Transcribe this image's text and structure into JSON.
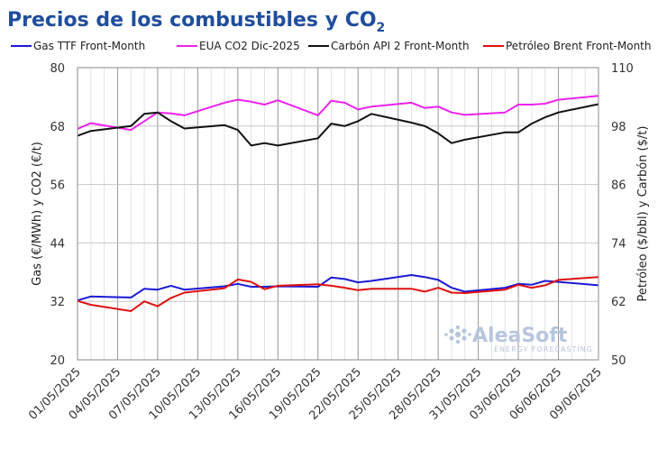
{
  "title_main": "Precios de los combustibles y CO",
  "title_sub": "2",
  "watermark": {
    "brand": "AleaSoft",
    "tagline": "ENERGY FORECASTING"
  },
  "colors": {
    "gas": "#1a1ad6",
    "co2": "#ee22ee",
    "coal": "#111111",
    "brent": "#e01010",
    "title": "#1f4e9c",
    "grid": "#c8c8c8"
  },
  "chart_data": {
    "type": "line",
    "x": [
      "01/05/2025",
      "02/05/2025",
      "05/05/2025",
      "06/05/2025",
      "07/05/2025",
      "08/05/2025",
      "09/05/2025",
      "12/05/2025",
      "13/05/2025",
      "14/05/2025",
      "15/05/2025",
      "16/05/2025",
      "19/05/2025",
      "20/05/2025",
      "21/05/2025",
      "22/05/2025",
      "23/05/2025",
      "26/05/2025",
      "27/05/2025",
      "28/05/2025",
      "29/05/2025",
      "30/05/2025",
      "02/06/2025",
      "03/06/2025",
      "04/06/2025",
      "05/06/2025",
      "06/06/2025",
      "09/06/2025"
    ],
    "x_tick_labels": [
      "01/05/2025",
      "04/05/2025",
      "07/05/2025",
      "10/05/2025",
      "13/05/2025",
      "16/05/2025",
      "19/05/2025",
      "22/05/2025",
      "25/05/2025",
      "28/05/2025",
      "31/05/2025",
      "03/06/2025",
      "06/06/2025",
      "09/06/2025"
    ],
    "x_range": [
      "01/05/2025",
      "09/06/2025"
    ],
    "left_axis": {
      "label": "Gas (€/MWh) y CO2 (€/t)",
      "ylim": [
        20,
        80
      ],
      "ticks": [
        20,
        32,
        44,
        56,
        68,
        80
      ]
    },
    "right_axis": {
      "label": "Petróleo ($/bbl) y Carbón ($/t)",
      "ylim": [
        50,
        110
      ],
      "ticks": [
        50,
        62,
        74,
        86,
        98,
        110
      ]
    },
    "series": [
      {
        "name": "Gas TTF Front-Month",
        "axis": "left",
        "color": "#1a1ad6",
        "values": [
          32.2,
          33.0,
          32.8,
          34.6,
          34.4,
          35.2,
          34.4,
          35.1,
          35.6,
          35.0,
          35.0,
          35.1,
          35.0,
          36.9,
          36.6,
          35.9,
          36.2,
          37.4,
          37.0,
          36.4,
          34.8,
          34.0,
          34.8,
          35.6,
          35.4,
          36.2,
          36.0,
          35.3
        ]
      },
      {
        "name": "EUA CO2 Dic-2025",
        "axis": "left",
        "color": "#ee22ee",
        "values": [
          67.4,
          68.6,
          67.2,
          69.0,
          70.8,
          70.6,
          70.2,
          72.8,
          73.4,
          73.0,
          72.4,
          73.3,
          70.2,
          73.2,
          72.8,
          71.4,
          72.0,
          72.8,
          71.7,
          72.0,
          70.8,
          70.3,
          70.8,
          72.4,
          72.4,
          72.6,
          73.4,
          74.2
        ]
      },
      {
        "name": "Carbón API 2 Front-Month",
        "axis": "right",
        "color": "#111111",
        "values": [
          96.0,
          97.0,
          98.0,
          100.5,
          100.8,
          99.0,
          97.5,
          98.2,
          97.2,
          94.0,
          94.5,
          94.0,
          95.5,
          98.5,
          98.0,
          99.0,
          100.5,
          98.7,
          98.0,
          96.5,
          94.5,
          95.2,
          96.7,
          96.7,
          98.5,
          99.8,
          100.8,
          102.5
        ]
      },
      {
        "name": "Petróleo Brent Front-Month",
        "axis": "right",
        "color": "#e01010",
        "values": [
          62.1,
          61.3,
          60.0,
          62.0,
          61.0,
          62.7,
          63.8,
          64.7,
          66.5,
          66.0,
          64.5,
          65.2,
          65.5,
          65.2,
          64.8,
          64.3,
          64.6,
          64.6,
          64.0,
          64.8,
          63.8,
          63.7,
          64.4,
          65.4,
          64.8,
          65.3,
          66.4,
          67.0
        ]
      }
    ],
    "grid": true,
    "legend_position": "top"
  }
}
